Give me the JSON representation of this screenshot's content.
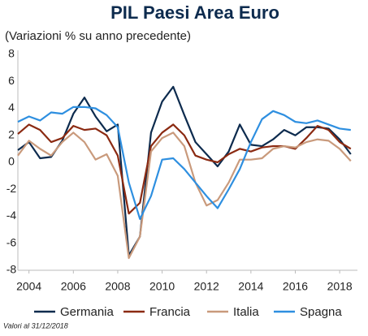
{
  "chart_data": {
    "type": "line",
    "title": "PIL Paesi Area Euro",
    "subtitle": "(Variazioni % su anno precedente)",
    "footnote": "Valori al 31/12/2018",
    "x": [
      2003.5,
      2004,
      2004.5,
      2005,
      2005.5,
      2006,
      2006.5,
      2007,
      2007.5,
      2008,
      2008.5,
      2009,
      2009.5,
      2010,
      2010.5,
      2011,
      2011.5,
      2012,
      2012.5,
      2013,
      2013.5,
      2014,
      2014.5,
      2015,
      2015.5,
      2016,
      2016.5,
      2017,
      2017.5,
      2018,
      2018.5
    ],
    "series": [
      {
        "name": "Germania",
        "color": "#0d2b4e",
        "values": [
          0.9,
          1.5,
          0.3,
          0.4,
          1.6,
          3.6,
          4.8,
          3.4,
          2.3,
          2.8,
          -6.9,
          -5.5,
          2.2,
          4.5,
          5.6,
          3.5,
          1.5,
          0.6,
          -0.3,
          0.8,
          2.8,
          1.3,
          1.2,
          1.7,
          2.4,
          2.0,
          2.6,
          2.6,
          2.5,
          1.7,
          0.6
        ]
      },
      {
        "name": "Francia",
        "color": "#8b2a12",
        "values": [
          2.1,
          2.8,
          2.4,
          1.5,
          1.8,
          2.7,
          2.4,
          2.5,
          2.0,
          0.5,
          -3.8,
          -3.0,
          1.2,
          2.2,
          2.8,
          2.0,
          0.5,
          0.2,
          0.0,
          0.6,
          1.0,
          0.8,
          1.1,
          1.2,
          1.2,
          1.0,
          1.8,
          2.7,
          2.4,
          1.5,
          1.0
        ]
      },
      {
        "name": "Italia",
        "color": "#c99a7c",
        "values": [
          0.5,
          1.6,
          1.0,
          0.5,
          1.5,
          2.2,
          1.5,
          0.2,
          0.6,
          -1.0,
          -7.1,
          -5.5,
          0.8,
          1.8,
          2.2,
          1.2,
          -1.5,
          -3.2,
          -2.8,
          -1.5,
          0.2,
          0.2,
          0.3,
          1.0,
          1.2,
          1.1,
          1.5,
          1.7,
          1.6,
          1.0,
          0.1
        ]
      },
      {
        "name": "Spagna",
        "color": "#2e8fe0",
        "values": [
          3.0,
          3.4,
          3.1,
          3.7,
          3.6,
          4.1,
          4.1,
          4.0,
          3.5,
          2.6,
          -1.5,
          -4.2,
          -2.5,
          0.2,
          0.3,
          -0.5,
          -1.5,
          -2.5,
          -3.4,
          -2.0,
          -0.5,
          1.5,
          3.2,
          3.8,
          3.5,
          3.0,
          2.9,
          3.1,
          2.8,
          2.5,
          2.4
        ]
      }
    ],
    "xlim": [
      2003.5,
      2018.8
    ],
    "xticks": [
      2004,
      2006,
      2008,
      2010,
      2012,
      2014,
      2016,
      2018
    ],
    "ylim": [
      -8,
      8
    ],
    "yticks": [
      -8,
      -6,
      -4,
      -2,
      0,
      2,
      4,
      6,
      8
    ]
  }
}
